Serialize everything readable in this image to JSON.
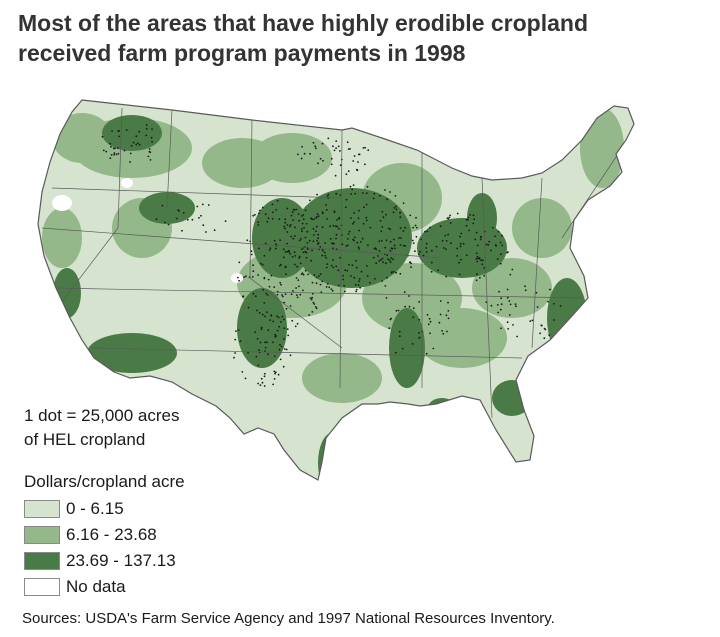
{
  "title_line1": "Most of the areas that have highly erodible cropland",
  "title_line2": "received farm program payments in 1998",
  "dot_note_line1": "1 dot = 25,000 acres",
  "dot_note_line2": "of HEL cropland",
  "legend": {
    "title": "Dollars/cropland acre",
    "items": [
      {
        "label": "0 - 6.15",
        "color": "#d6e3cf"
      },
      {
        "label": "6.16 - 23.68",
        "color": "#94b88a"
      },
      {
        "label": "23.69 - 137.13",
        "color": "#4a7a45"
      },
      {
        "label": "No data",
        "color": "#ffffff"
      }
    ]
  },
  "colors": {
    "border": "#5a5a5a",
    "dot": "#1a1a1a"
  },
  "source": "Sources: USDA's Farm Service Agency and 1997 National Resources Inventory."
}
